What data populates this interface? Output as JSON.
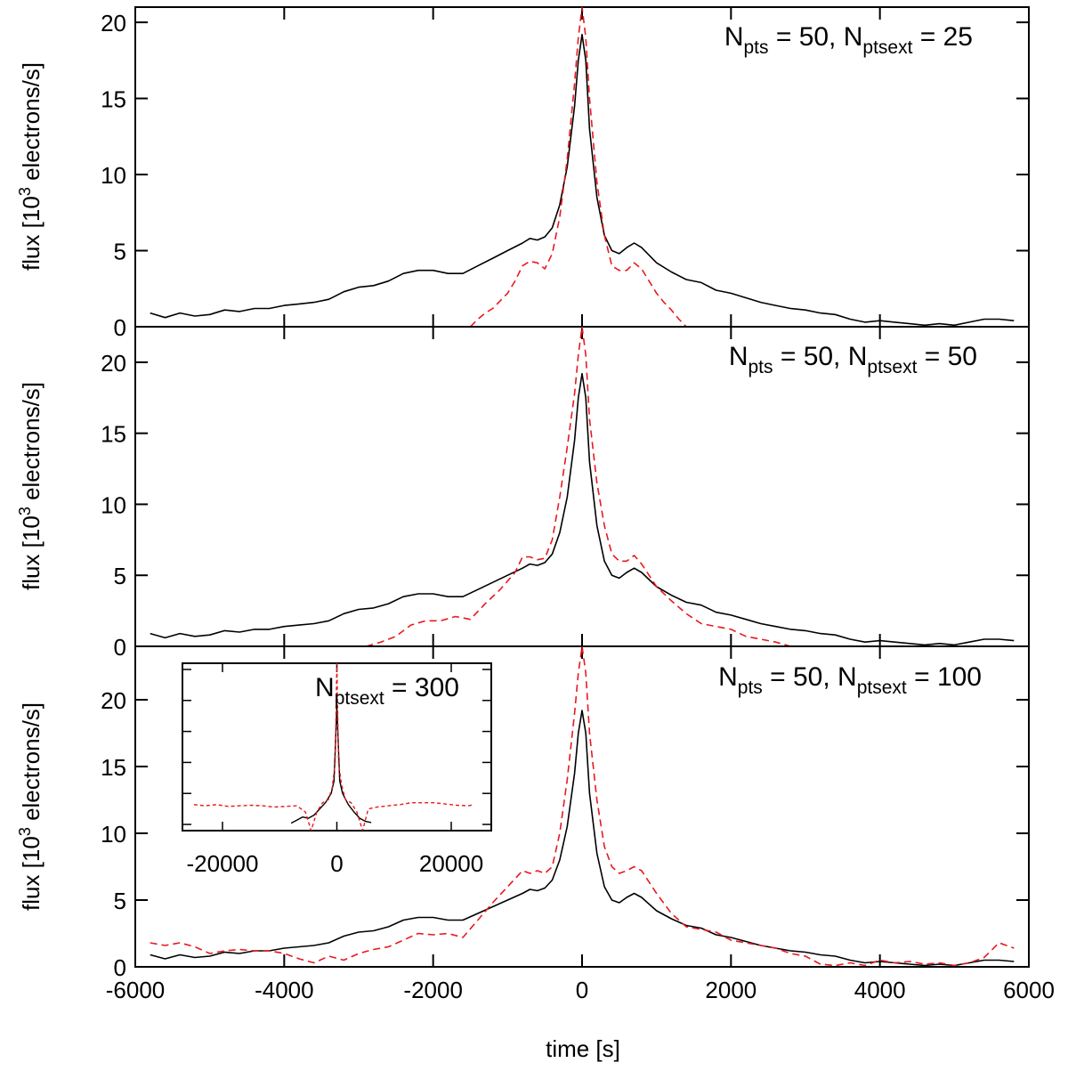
{
  "figure": {
    "xlabel": "time [s]",
    "ylabel_prefix": "flux [10",
    "ylabel_sup": "3",
    "ylabel_suffix": " electrons/s]",
    "x_ticks": [
      "-6000",
      "-4000",
      "-2000",
      "0",
      "2000",
      "4000",
      "6000"
    ]
  },
  "chart_data": [
    {
      "type": "line",
      "panel": "top",
      "xlim": [
        -6000,
        6000
      ],
      "ylim": [
        0,
        21
      ],
      "y_ticks": [
        "0",
        "5",
        "10",
        "15",
        "20"
      ],
      "annotation": {
        "a": "N",
        "a_sub": "pts",
        "b": " = 50, N",
        "b_sub": "ptsext",
        "c": " = 25"
      },
      "series": [
        {
          "name": "black",
          "color": "#000000",
          "dashed": false,
          "x": [
            -5800,
            -5600,
            -5400,
            -5200,
            -5000,
            -4800,
            -4600,
            -4400,
            -4200,
            -4000,
            -3800,
            -3600,
            -3400,
            -3200,
            -3000,
            -2800,
            -2600,
            -2400,
            -2200,
            -2000,
            -1800,
            -1600,
            -1400,
            -1200,
            -1000,
            -800,
            -700,
            -600,
            -500,
            -400,
            -300,
            -200,
            -100,
            -50,
            0,
            50,
            100,
            200,
            300,
            400,
            500,
            600,
            700,
            800,
            1000,
            1200,
            1400,
            1600,
            1800,
            2000,
            2200,
            2400,
            2600,
            2800,
            3000,
            3200,
            3400,
            3600,
            3800,
            4000,
            4200,
            4400,
            4600,
            4800,
            5000,
            5200,
            5400,
            5600,
            5800
          ],
          "y": [
            0.9,
            0.6,
            0.9,
            0.7,
            0.8,
            1.1,
            1.0,
            1.2,
            1.2,
            1.4,
            1.5,
            1.6,
            1.8,
            2.3,
            2.6,
            2.7,
            3.0,
            3.5,
            3.7,
            3.7,
            3.5,
            3.5,
            4.0,
            4.5,
            5.0,
            5.5,
            5.8,
            5.7,
            5.9,
            6.5,
            8.0,
            10.5,
            14.5,
            17.5,
            19.2,
            17.5,
            13.0,
            8.5,
            6.0,
            5.0,
            4.8,
            5.2,
            5.5,
            5.2,
            4.2,
            3.6,
            3.1,
            2.9,
            2.4,
            2.2,
            1.9,
            1.6,
            1.4,
            1.2,
            1.1,
            0.9,
            0.8,
            0.5,
            0.3,
            0.4,
            0.3,
            0.2,
            0.1,
            0.2,
            0.1,
            0.3,
            0.5,
            0.5,
            0.4
          ]
        },
        {
          "name": "red",
          "color": "#e8191f",
          "dashed": true,
          "x": [
            -1500,
            -1400,
            -1300,
            -1200,
            -1100,
            -1000,
            -900,
            -800,
            -700,
            -600,
            -500,
            -400,
            -300,
            -200,
            -100,
            -50,
            0,
            50,
            100,
            200,
            300,
            400,
            500,
            600,
            700,
            800,
            900,
            1000,
            1100,
            1200,
            1300,
            1400
          ],
          "y": [
            0,
            0.5,
            0.9,
            1.2,
            1.7,
            2.2,
            3.0,
            4.0,
            4.3,
            4.2,
            3.8,
            4.8,
            7.2,
            11.0,
            16.0,
            19.0,
            21.0,
            19.0,
            15.0,
            9.5,
            6.0,
            4.0,
            3.7,
            3.7,
            4.2,
            3.8,
            3.0,
            2.2,
            1.6,
            1.1,
            0.5,
            0
          ]
        }
      ]
    },
    {
      "type": "line",
      "panel": "middle",
      "xlim": [
        -6000,
        6000
      ],
      "ylim": [
        0,
        22.5
      ],
      "y_ticks": [
        "0",
        "5",
        "10",
        "15",
        "20"
      ],
      "annotation": {
        "a": "N",
        "a_sub": "pts",
        "b": " = 50, N",
        "b_sub": "ptsext",
        "c": " = 50"
      },
      "series": [
        {
          "name": "black",
          "color": "#000000",
          "dashed": false,
          "x": [
            -5800,
            -5600,
            -5400,
            -5200,
            -5000,
            -4800,
            -4600,
            -4400,
            -4200,
            -4000,
            -3800,
            -3600,
            -3400,
            -3200,
            -3000,
            -2800,
            -2600,
            -2400,
            -2200,
            -2000,
            -1800,
            -1600,
            -1400,
            -1200,
            -1000,
            -800,
            -700,
            -600,
            -500,
            -400,
            -300,
            -200,
            -100,
            -50,
            0,
            50,
            100,
            200,
            300,
            400,
            500,
            600,
            700,
            800,
            1000,
            1200,
            1400,
            1600,
            1800,
            2000,
            2200,
            2400,
            2600,
            2800,
            3000,
            3200,
            3400,
            3600,
            3800,
            4000,
            4200,
            4400,
            4600,
            4800,
            5000,
            5200,
            5400,
            5600,
            5800
          ],
          "y": [
            0.9,
            0.6,
            0.9,
            0.7,
            0.8,
            1.1,
            1.0,
            1.2,
            1.2,
            1.4,
            1.5,
            1.6,
            1.8,
            2.3,
            2.6,
            2.7,
            3.0,
            3.5,
            3.7,
            3.7,
            3.5,
            3.5,
            4.0,
            4.5,
            5.0,
            5.5,
            5.8,
            5.7,
            5.9,
            6.5,
            8.0,
            10.5,
            14.5,
            17.5,
            19.2,
            17.5,
            13.0,
            8.5,
            6.0,
            5.0,
            4.8,
            5.2,
            5.5,
            5.2,
            4.2,
            3.6,
            3.1,
            2.9,
            2.4,
            2.2,
            1.9,
            1.6,
            1.4,
            1.2,
            1.1,
            0.9,
            0.8,
            0.5,
            0.3,
            0.4,
            0.3,
            0.2,
            0.1,
            0.2,
            0.1,
            0.3,
            0.5,
            0.5,
            0.4
          ]
        },
        {
          "name": "red",
          "color": "#e8191f",
          "dashed": true,
          "x": [
            -2900,
            -2700,
            -2500,
            -2300,
            -2100,
            -1900,
            -1700,
            -1500,
            -1300,
            -1100,
            -900,
            -800,
            -700,
            -600,
            -500,
            -400,
            -300,
            -200,
            -100,
            -50,
            0,
            50,
            100,
            200,
            300,
            400,
            500,
            600,
            700,
            800,
            900,
            1000,
            1200,
            1400,
            1600,
            1800,
            2000,
            2200,
            2400,
            2600,
            2800
          ],
          "y": [
            0,
            0.3,
            0.7,
            1.5,
            1.8,
            1.8,
            2.1,
            1.9,
            3.0,
            4.0,
            5.2,
            6.3,
            6.3,
            6.1,
            6.2,
            7.5,
            10.5,
            14.0,
            17.8,
            20.5,
            22.5,
            20.5,
            16.0,
            11.5,
            8.5,
            6.5,
            6.0,
            6.0,
            6.4,
            5.8,
            5.0,
            4.2,
            3.2,
            2.3,
            1.6,
            1.4,
            1.2,
            0.7,
            0.5,
            0.3,
            0
          ]
        }
      ]
    },
    {
      "type": "line",
      "panel": "bottom",
      "xlim": [
        -6000,
        6000
      ],
      "ylim": [
        0,
        24
      ],
      "y_ticks": [
        "0",
        "5",
        "10",
        "15",
        "20"
      ],
      "annotation": {
        "a": "N",
        "a_sub": "pts",
        "b": " = 50, N",
        "b_sub": "ptsext",
        "c": " = 100"
      },
      "series": [
        {
          "name": "black",
          "color": "#000000",
          "dashed": false,
          "x": [
            -5800,
            -5600,
            -5400,
            -5200,
            -5000,
            -4800,
            -4600,
            -4400,
            -4200,
            -4000,
            -3800,
            -3600,
            -3400,
            -3200,
            -3000,
            -2800,
            -2600,
            -2400,
            -2200,
            -2000,
            -1800,
            -1600,
            -1400,
            -1200,
            -1000,
            -800,
            -700,
            -600,
            -500,
            -400,
            -300,
            -200,
            -100,
            -50,
            0,
            50,
            100,
            200,
            300,
            400,
            500,
            600,
            700,
            800,
            1000,
            1200,
            1400,
            1600,
            1800,
            2000,
            2200,
            2400,
            2600,
            2800,
            3000,
            3200,
            3400,
            3600,
            3800,
            4000,
            4200,
            4400,
            4600,
            4800,
            5000,
            5200,
            5400,
            5600,
            5800
          ],
          "y": [
            0.9,
            0.6,
            0.9,
            0.7,
            0.8,
            1.1,
            1.0,
            1.2,
            1.2,
            1.4,
            1.5,
            1.6,
            1.8,
            2.3,
            2.6,
            2.7,
            3.0,
            3.5,
            3.7,
            3.7,
            3.5,
            3.5,
            4.0,
            4.5,
            5.0,
            5.5,
            5.8,
            5.7,
            5.9,
            6.5,
            8.0,
            10.5,
            14.5,
            17.5,
            19.2,
            17.5,
            13.0,
            8.5,
            6.0,
            5.0,
            4.8,
            5.2,
            5.5,
            5.2,
            4.2,
            3.6,
            3.1,
            2.9,
            2.4,
            2.2,
            1.9,
            1.6,
            1.4,
            1.2,
            1.1,
            0.9,
            0.8,
            0.5,
            0.3,
            0.4,
            0.3,
            0.2,
            0.1,
            0.2,
            0.1,
            0.3,
            0.5,
            0.5,
            0.4
          ]
        },
        {
          "name": "red",
          "color": "#e8191f",
          "dashed": true,
          "x": [
            -5800,
            -5600,
            -5400,
            -5200,
            -5000,
            -4800,
            -4600,
            -4400,
            -4200,
            -4000,
            -3800,
            -3600,
            -3400,
            -3200,
            -3000,
            -2800,
            -2600,
            -2400,
            -2200,
            -2000,
            -1800,
            -1600,
            -1400,
            -1200,
            -1000,
            -800,
            -700,
            -600,
            -500,
            -400,
            -300,
            -200,
            -100,
            -50,
            0,
            50,
            100,
            200,
            300,
            400,
            500,
            600,
            700,
            800,
            1000,
            1200,
            1400,
            1600,
            1800,
            2000,
            2200,
            2400,
            2600,
            2800,
            3000,
            3200,
            3400,
            3600,
            3800,
            4000,
            4200,
            4400,
            4600,
            4800,
            5000,
            5200,
            5400,
            5600,
            5800
          ],
          "y": [
            1.8,
            1.6,
            1.8,
            1.5,
            1.0,
            1.2,
            1.3,
            1.2,
            1.2,
            1.0,
            0.6,
            0.3,
            0.8,
            0.5,
            1.0,
            1.3,
            1.5,
            2.0,
            2.5,
            2.4,
            2.5,
            2.2,
            3.5,
            4.8,
            6.0,
            7.2,
            7.0,
            7.2,
            7.0,
            7.5,
            10.0,
            14.0,
            19.0,
            22.0,
            24.0,
            22.0,
            17.5,
            12.5,
            9.0,
            7.5,
            7.0,
            7.2,
            7.5,
            7.2,
            5.5,
            4.0,
            3.0,
            2.8,
            2.6,
            2.0,
            1.8,
            1.6,
            1.4,
            1.0,
            0.8,
            0.2,
            0.1,
            0.3,
            0.1,
            0.5,
            0.3,
            0.4,
            0.2,
            0.3,
            0.1,
            0.3,
            0.7,
            1.8,
            1.4
          ]
        }
      ]
    },
    {
      "type": "line",
      "panel": "inset",
      "xlim": [
        -27000,
        27000
      ],
      "ylim": [
        -1,
        26
      ],
      "x_ticks": [
        "-20000",
        "0",
        "20000"
      ],
      "annotation": {
        "a": "N",
        "a_sub": "ptsext",
        "b": " = 300"
      },
      "series": [
        {
          "name": "black",
          "color": "#000000",
          "dashed": false,
          "x": [
            -8000,
            -7000,
            -6000,
            -5000,
            -4000,
            -3000,
            -2000,
            -1000,
            -500,
            0,
            500,
            1000,
            2000,
            3000,
            4000,
            5000,
            6000
          ],
          "y": [
            0.2,
            0.7,
            1.2,
            1.0,
            1.5,
            2.5,
            3.5,
            5.0,
            7.0,
            19.0,
            7.0,
            5.0,
            3.2,
            2.0,
            1.0,
            0.5,
            0.3
          ]
        },
        {
          "name": "red",
          "color": "#e8191f",
          "dashed": true,
          "x": [
            -25000,
            -23000,
            -21000,
            -19000,
            -17000,
            -15000,
            -13000,
            -11000,
            -9000,
            -7000,
            -5500,
            -4500,
            -3500,
            -2500,
            -1500,
            -800,
            -300,
            0,
            300,
            800,
            1500,
            2500,
            3500,
            4500,
            5500,
            7000,
            9000,
            11000,
            13000,
            15000,
            17000,
            19000,
            21000,
            23000,
            24000
          ],
          "y": [
            3.2,
            3.0,
            3.2,
            2.9,
            3.0,
            3.1,
            3.0,
            2.8,
            2.9,
            3.0,
            2.0,
            -1.0,
            2.0,
            3.5,
            4.0,
            6.0,
            10.0,
            26.0,
            10.0,
            6.5,
            4.0,
            3.5,
            2.0,
            -1.0,
            2.5,
            2.8,
            3.0,
            3.2,
            3.5,
            3.5,
            3.5,
            3.3,
            3.1,
            3.0,
            3.2
          ]
        }
      ]
    }
  ]
}
